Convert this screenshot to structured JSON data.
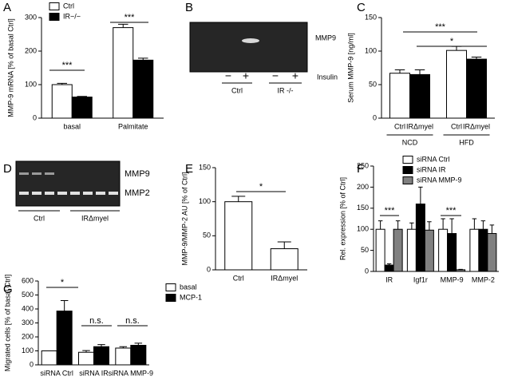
{
  "chart_data": [
    {
      "type": "bar",
      "panel": "A",
      "ylabel": "MMP-9 mRNA [% of basal Ctrl]",
      "categories": [
        "basal",
        "Palmitate"
      ],
      "series": [
        {
          "name": "Ctrl",
          "color": "#ffffff",
          "values": [
            100,
            270
          ],
          "errors": [
            4,
            10
          ]
        },
        {
          "name": "IR−/−",
          "color": "#000000",
          "values": [
            63,
            173
          ],
          "errors": [
            2,
            6
          ]
        }
      ],
      "ylim": [
        0,
        300
      ],
      "yticks": [
        0,
        100,
        200,
        300
      ],
      "annotations": [
        "***",
        "***"
      ]
    },
    {
      "type": "gel",
      "panel": "B",
      "labels": [
        "MMP9"
      ],
      "lanes": [
        "−",
        "+",
        "−",
        "+"
      ],
      "treatment": "Insulin",
      "groups": [
        "Ctrl",
        "IR -/-"
      ]
    },
    {
      "type": "bar",
      "panel": "C",
      "ylabel": "Serum MMP-9 [ng/ml]",
      "categories": [
        "NCD",
        "HFD"
      ],
      "series": [
        {
          "name": "Ctrl",
          "color": "#ffffff",
          "values": [
            67,
            101
          ],
          "errors": [
            5,
            6
          ]
        },
        {
          "name": "IRΔmyel",
          "color": "#000000",
          "values": [
            65,
            88
          ],
          "errors": [
            7,
            3
          ]
        }
      ],
      "ylim": [
        0,
        150
      ],
      "yticks": [
        0,
        50,
        100,
        150
      ],
      "annotations": [
        "***",
        "*"
      ]
    },
    {
      "type": "gel",
      "panel": "D",
      "labels": [
        "MMP9",
        "MMP2"
      ],
      "groups": [
        "Ctrl",
        "IRΔmyel"
      ]
    },
    {
      "type": "bar",
      "panel": "E",
      "ylabel": "MMP-9/MMP-2 AU [% of Ctrl]",
      "categories": [
        "Ctrl",
        "IRΔmyel"
      ],
      "values": [
        100,
        31
      ],
      "errors": [
        8,
        10
      ],
      "color": "#ffffff",
      "ylim": [
        0,
        150
      ],
      "yticks": [
        0,
        50,
        100,
        150
      ],
      "annotations": [
        "*"
      ]
    },
    {
      "type": "bar",
      "panel": "F",
      "ylabel": "Rel. expression [% of Ctrl]",
      "categories": [
        "IR",
        "Igf1r",
        "MMP-9",
        "MMP-2"
      ],
      "series": [
        {
          "name": "siRNA Ctrl",
          "color": "#ffffff",
          "values": [
            100,
            100,
            100,
            100
          ],
          "errors": [
            20,
            15,
            25,
            25
          ]
        },
        {
          "name": "siRNA IR",
          "color": "#000000",
          "values": [
            15,
            160,
            90,
            100
          ],
          "errors": [
            3,
            40,
            35,
            20
          ]
        },
        {
          "name": "siRNA MMP-9",
          "color": "#808080",
          "values": [
            100,
            98,
            4,
            90
          ],
          "errors": [
            20,
            20,
            1,
            20
          ]
        }
      ],
      "ylim": [
        0,
        250
      ],
      "yticks": [
        0,
        50,
        100,
        150,
        200,
        250
      ],
      "annotations": [
        "***",
        "***"
      ]
    },
    {
      "type": "bar",
      "panel": "G",
      "ylabel": "Migrated cells [% of basal Ctrl]",
      "categories": [
        "siRNA Ctrl",
        "siRNA IR",
        "siRNA MMP-9"
      ],
      "series": [
        {
          "name": "basal",
          "color": "#ffffff",
          "values": [
            100,
            90,
            120
          ],
          "errors": [
            0,
            12,
            10
          ]
        },
        {
          "name": "MCP-1",
          "color": "#000000",
          "values": [
            385,
            130,
            140
          ],
          "errors": [
            75,
            15,
            15
          ]
        }
      ],
      "ylim": [
        0,
        600
      ],
      "yticks": [
        0,
        100,
        200,
        300,
        400,
        500,
        600
      ],
      "annotations": [
        "*",
        "n.s.",
        "n.s."
      ]
    }
  ]
}
